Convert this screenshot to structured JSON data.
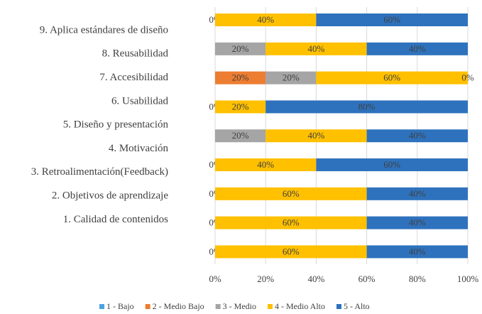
{
  "chart_data": {
    "type": "stacked-barh",
    "categories": [
      "9. Aplica estándares de diseño",
      "8. Reusabilidad",
      "7. Accesibilidad",
      "6. Usabilidad",
      "5. Diseño y presentación",
      "4. Motivación",
      "3. Retroalimentación(Feedback)",
      "2. Objetivos de aprendizaje",
      "1. Calidad de contenidos"
    ],
    "series": [
      {
        "name": "1 - Bajo",
        "color": "#4aa3df",
        "values": [
          0,
          0,
          0,
          0,
          0,
          0,
          0,
          0,
          0
        ],
        "value_labels": [
          null,
          null,
          null,
          null,
          null,
          null,
          null,
          null,
          null
        ]
      },
      {
        "name": "2 - Medio Bajo",
        "color": "#ed7d31",
        "values": [
          0,
          0,
          20,
          0,
          0,
          0,
          0,
          0,
          0
        ],
        "value_labels": [
          null,
          null,
          "20%",
          null,
          null,
          null,
          null,
          null,
          null
        ]
      },
      {
        "name": "3 - Medio",
        "color": "#a5a5a5",
        "values": [
          0,
          20,
          20,
          0,
          20,
          0,
          0,
          0,
          0
        ],
        "value_labels": [
          "0%",
          "20%",
          "20%",
          "0%",
          "20%",
          "0%",
          "0%",
          "0%",
          "0%"
        ]
      },
      {
        "name": "4 - Medio Alto",
        "color": "#ffc000",
        "values": [
          40,
          40,
          60,
          20,
          40,
          40,
          60,
          60,
          60
        ],
        "value_labels": [
          "40%",
          "40%",
          "60%",
          "20%",
          "40%",
          "40%",
          "60%",
          "60%",
          "60%"
        ]
      },
      {
        "name": "5 - Alto",
        "color": "#2e72bd",
        "values": [
          60,
          40,
          0,
          80,
          40,
          60,
          40,
          40,
          40
        ],
        "value_labels": [
          "60%",
          "40%",
          "0%",
          "80%",
          "40%",
          "60%",
          "40%",
          "40%",
          "40%"
        ]
      }
    ],
    "xlim": [
      0,
      100
    ],
    "xticks": [
      {
        "value": 0,
        "label": "0%"
      },
      {
        "value": 20,
        "label": "20%"
      },
      {
        "value": 40,
        "label": "40%"
      },
      {
        "value": 60,
        "label": "60%"
      },
      {
        "value": 80,
        "label": "80%"
      },
      {
        "value": 100,
        "label": "100%"
      }
    ],
    "grid": true,
    "legend": "bottom"
  }
}
